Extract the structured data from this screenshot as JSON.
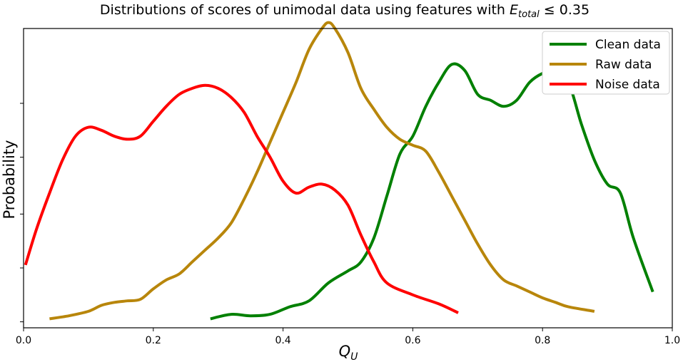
{
  "chart_data": {
    "type": "line",
    "title": {
      "prefix": "Distributions of scores of unimodal data using features with ",
      "symbol": "E",
      "subscript": "total",
      "suffix": " ≤ 0.35"
    },
    "xlabel": {
      "symbol": "Q",
      "subscript": "U"
    },
    "ylabel": "Probability",
    "xlim": [
      0.0,
      1.0
    ],
    "ylim": [
      0.0,
      1.0
    ],
    "xticks": [
      {
        "value": 0.0,
        "label": "0.0"
      },
      {
        "value": 0.2,
        "label": "0.2"
      },
      {
        "value": 0.4,
        "label": "0.4"
      },
      {
        "value": 0.6,
        "label": "0.6"
      },
      {
        "value": 0.8,
        "label": "0.8"
      },
      {
        "value": 1.0,
        "label": "1.0"
      }
    ],
    "yticks": [
      0.02,
      0.2,
      0.38,
      0.57,
      0.75
    ],
    "grid": false,
    "legend_position": "top-right",
    "series": [
      {
        "name": "Clean data",
        "color": "#008000",
        "x": [
          0.288,
          0.32,
          0.35,
          0.38,
          0.41,
          0.44,
          0.47,
          0.5,
          0.52,
          0.54,
          0.56,
          0.58,
          0.6,
          0.62,
          0.64,
          0.66,
          0.68,
          0.7,
          0.72,
          0.74,
          0.76,
          0.78,
          0.8,
          0.82,
          0.84,
          0.86,
          0.88,
          0.9,
          0.92,
          0.94,
          0.97
        ],
        "y": [
          0.03,
          0.045,
          0.04,
          0.045,
          0.07,
          0.09,
          0.15,
          0.19,
          0.22,
          0.3,
          0.44,
          0.58,
          0.64,
          0.74,
          0.82,
          0.88,
          0.86,
          0.78,
          0.76,
          0.74,
          0.76,
          0.82,
          0.85,
          0.86,
          0.82,
          0.68,
          0.56,
          0.48,
          0.45,
          0.3,
          0.12
        ]
      },
      {
        "name": "Raw data",
        "color": "#b8860b",
        "x": [
          0.04,
          0.07,
          0.1,
          0.12,
          0.14,
          0.16,
          0.18,
          0.2,
          0.22,
          0.24,
          0.26,
          0.28,
          0.3,
          0.32,
          0.34,
          0.36,
          0.38,
          0.4,
          0.42,
          0.44,
          0.46,
          0.47,
          0.48,
          0.5,
          0.52,
          0.54,
          0.56,
          0.58,
          0.6,
          0.62,
          0.64,
          0.66,
          0.68,
          0.7,
          0.72,
          0.74,
          0.76,
          0.78,
          0.8,
          0.82,
          0.84,
          0.88
        ],
        "y": [
          0.03,
          0.04,
          0.055,
          0.075,
          0.085,
          0.09,
          0.095,
          0.13,
          0.16,
          0.18,
          0.22,
          0.26,
          0.3,
          0.35,
          0.43,
          0.52,
          0.62,
          0.72,
          0.82,
          0.93,
          1.0,
          1.02,
          1.0,
          0.92,
          0.8,
          0.73,
          0.67,
          0.63,
          0.61,
          0.59,
          0.52,
          0.44,
          0.36,
          0.28,
          0.21,
          0.16,
          0.14,
          0.12,
          0.1,
          0.085,
          0.07,
          0.055
        ]
      },
      {
        "name": "Noise data",
        "color": "#ff0000",
        "x": [
          0.003,
          0.02,
          0.04,
          0.06,
          0.08,
          0.1,
          0.12,
          0.14,
          0.16,
          0.18,
          0.2,
          0.22,
          0.24,
          0.26,
          0.28,
          0.3,
          0.32,
          0.34,
          0.36,
          0.38,
          0.4,
          0.42,
          0.44,
          0.46,
          0.48,
          0.5,
          0.52,
          0.54,
          0.56,
          0.6,
          0.64,
          0.67
        ],
        "y": [
          0.21,
          0.33,
          0.45,
          0.56,
          0.64,
          0.67,
          0.66,
          0.64,
          0.63,
          0.64,
          0.69,
          0.74,
          0.78,
          0.8,
          0.81,
          0.8,
          0.77,
          0.72,
          0.64,
          0.57,
          0.49,
          0.45,
          0.47,
          0.48,
          0.46,
          0.41,
          0.31,
          0.22,
          0.15,
          0.11,
          0.08,
          0.05
        ]
      }
    ]
  }
}
